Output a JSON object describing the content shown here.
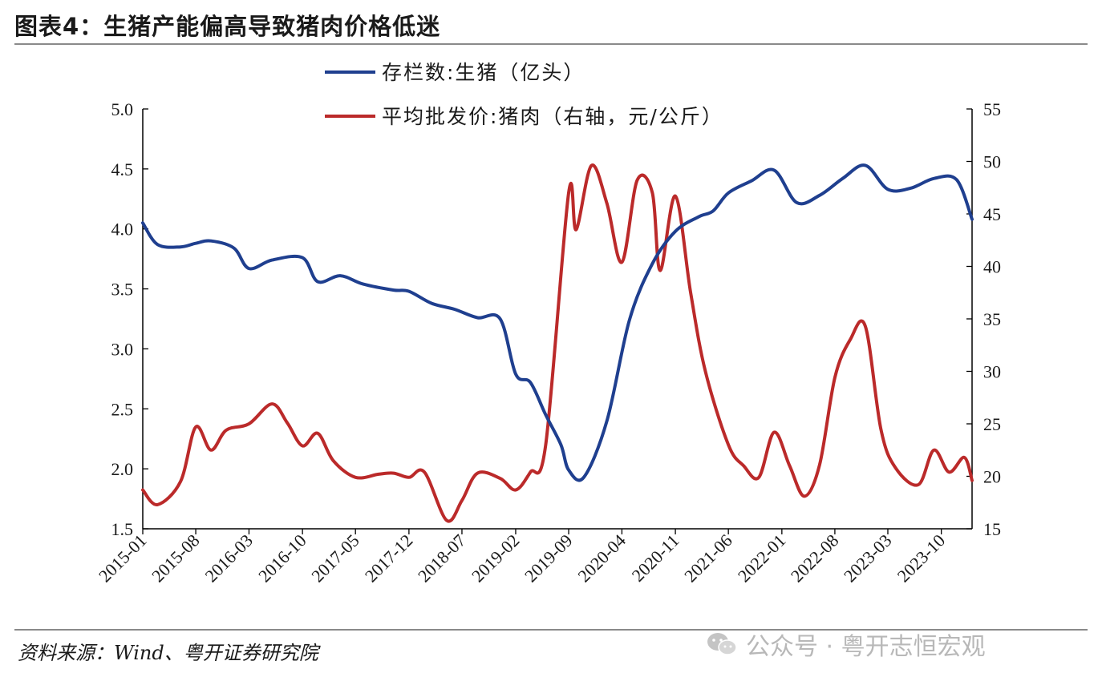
{
  "figure": {
    "title": "图表4：生猪产能偏高导致猪肉价格低迷",
    "source": "资料来源：Wind、粤开证券研究院",
    "watermark": "公众号 · 粤开志恒宏观"
  },
  "chart_data": {
    "type": "line",
    "title": "",
    "legend_placement": "top-center",
    "grid": false,
    "y_left": {
      "min": 1.5,
      "max": 5.0,
      "ticks": [
        "1.5",
        "2.0",
        "2.5",
        "3.0",
        "3.5",
        "4.0",
        "4.5",
        "5.0"
      ]
    },
    "y_right": {
      "min": 15,
      "max": 55,
      "ticks": [
        "15",
        "20",
        "25",
        "30",
        "35",
        "40",
        "45",
        "50",
        "55"
      ]
    },
    "x_ticks": [
      "2015-01",
      "2015-08",
      "2016-03",
      "2016-10",
      "2017-05",
      "2017-12",
      "2018-07",
      "2019-02",
      "2019-09",
      "2020-04",
      "2020-11",
      "2021-06",
      "2022-01",
      "2022-08",
      "2023-03",
      "2023-10"
    ],
    "series": [
      {
        "name": "存栏数:生猪（亿头）",
        "axis": "left",
        "color": "#1f3f8f",
        "x": [
          "2015-01",
          "2015-03",
          "2015-06",
          "2015-08",
          "2015-10",
          "2016-01",
          "2016-03",
          "2016-06",
          "2016-10",
          "2016-12",
          "2017-03",
          "2017-06",
          "2017-10",
          "2017-12",
          "2018-03",
          "2018-06",
          "2018-09",
          "2018-12",
          "2019-02",
          "2019-04",
          "2019-06",
          "2019-08",
          "2019-09",
          "2019-11",
          "2020-02",
          "2020-05",
          "2020-08",
          "2020-11",
          "2021-02",
          "2021-04",
          "2021-06",
          "2021-09",
          "2021-12",
          "2022-03",
          "2022-06",
          "2022-09",
          "2022-12",
          "2023-03",
          "2023-06",
          "2023-09",
          "2023-12",
          "2024-02"
        ],
        "values": [
          4.05,
          3.87,
          3.85,
          3.88,
          3.9,
          3.84,
          3.67,
          3.74,
          3.76,
          3.56,
          3.61,
          3.54,
          3.49,
          3.48,
          3.38,
          3.33,
          3.26,
          3.25,
          2.79,
          2.72,
          2.45,
          2.2,
          1.99,
          1.93,
          2.4,
          3.24,
          3.71,
          3.98,
          4.1,
          4.15,
          4.3,
          4.4,
          4.49,
          4.22,
          4.28,
          4.42,
          4.53,
          4.33,
          4.34,
          4.42,
          4.41,
          4.08
        ]
      },
      {
        "name": "平均批发价:猪肉（右轴，元/公斤）",
        "axis": "right",
        "color": "#bb2a2a",
        "x": [
          "2015-01",
          "2015-03",
          "2015-06",
          "2015-08",
          "2015-10",
          "2015-12",
          "2016-03",
          "2016-06",
          "2016-08",
          "2016-10",
          "2016-12",
          "2017-02",
          "2017-05",
          "2017-08",
          "2017-10",
          "2017-12",
          "2018-02",
          "2018-05",
          "2018-07",
          "2018-09",
          "2018-12",
          "2019-02",
          "2019-04",
          "2019-06",
          "2019-09",
          "2019-10",
          "2019-12",
          "2020-02",
          "2020-04",
          "2020-06",
          "2020-08",
          "2020-09",
          "2020-11",
          "2021-01",
          "2021-03",
          "2021-06",
          "2021-08",
          "2021-10",
          "2021-12",
          "2022-02",
          "2022-04",
          "2022-06",
          "2022-08",
          "2022-10",
          "2022-12",
          "2023-02",
          "2023-04",
          "2023-07",
          "2023-09",
          "2023-11",
          "2024-01",
          "2024-02"
        ],
        "values": [
          18.7,
          17.3,
          19.5,
          24.7,
          22.5,
          24.4,
          25.0,
          26.9,
          25.1,
          22.9,
          24.1,
          21.5,
          19.9,
          20.2,
          20.3,
          19.9,
          20.4,
          15.8,
          17.7,
          20.3,
          19.8,
          18.7,
          20.4,
          23.0,
          47.0,
          43.5,
          49.6,
          46.0,
          40.4,
          48.2,
          47.0,
          39.6,
          46.7,
          37.5,
          30.0,
          23.0,
          21.0,
          19.9,
          24.2,
          21.0,
          18.1,
          21.1,
          29.4,
          33.0,
          34.3,
          24.5,
          20.8,
          19.2,
          22.5,
          20.4,
          21.8,
          19.6
        ]
      }
    ]
  }
}
